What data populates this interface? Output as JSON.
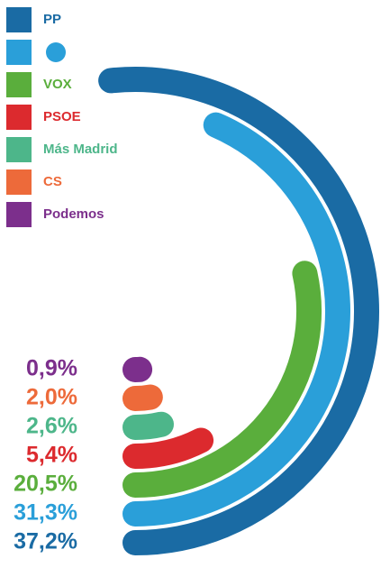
{
  "chart_data": {
    "type": "radial_bar",
    "ylim": [
      0,
      72
    ],
    "series": [
      {
        "name": "PP",
        "color": "#1a6ba4",
        "values": [
          37.2
        ],
        "value_labels": [
          "37,2%"
        ]
      },
      {
        "name": null,
        "color": "#2a9fd9",
        "values": [
          31.3
        ],
        "value_labels": [
          "31,3%"
        ]
      },
      {
        "name": "VOX",
        "color": "#5aae3c",
        "values": [
          20.5
        ],
        "value_labels": [
          "20,5%"
        ]
      },
      {
        "name": "PSOE",
        "color": "#dc2a2e",
        "values": [
          5.4
        ],
        "value_labels": [
          "5,4%"
        ]
      },
      {
        "name": "Más Madrid",
        "color": "#4db68a",
        "values": [
          2.6
        ],
        "value_labels": [
          "2,6%"
        ]
      },
      {
        "name": "CS",
        "color": "#ed6a3a",
        "values": [
          2.0
        ],
        "value_labels": [
          "2,0%"
        ]
      },
      {
        "name": "Podemos",
        "color": "#7c2f8c",
        "values": [
          0.9
        ],
        "value_labels": [
          "0,9%"
        ]
      }
    ]
  }
}
